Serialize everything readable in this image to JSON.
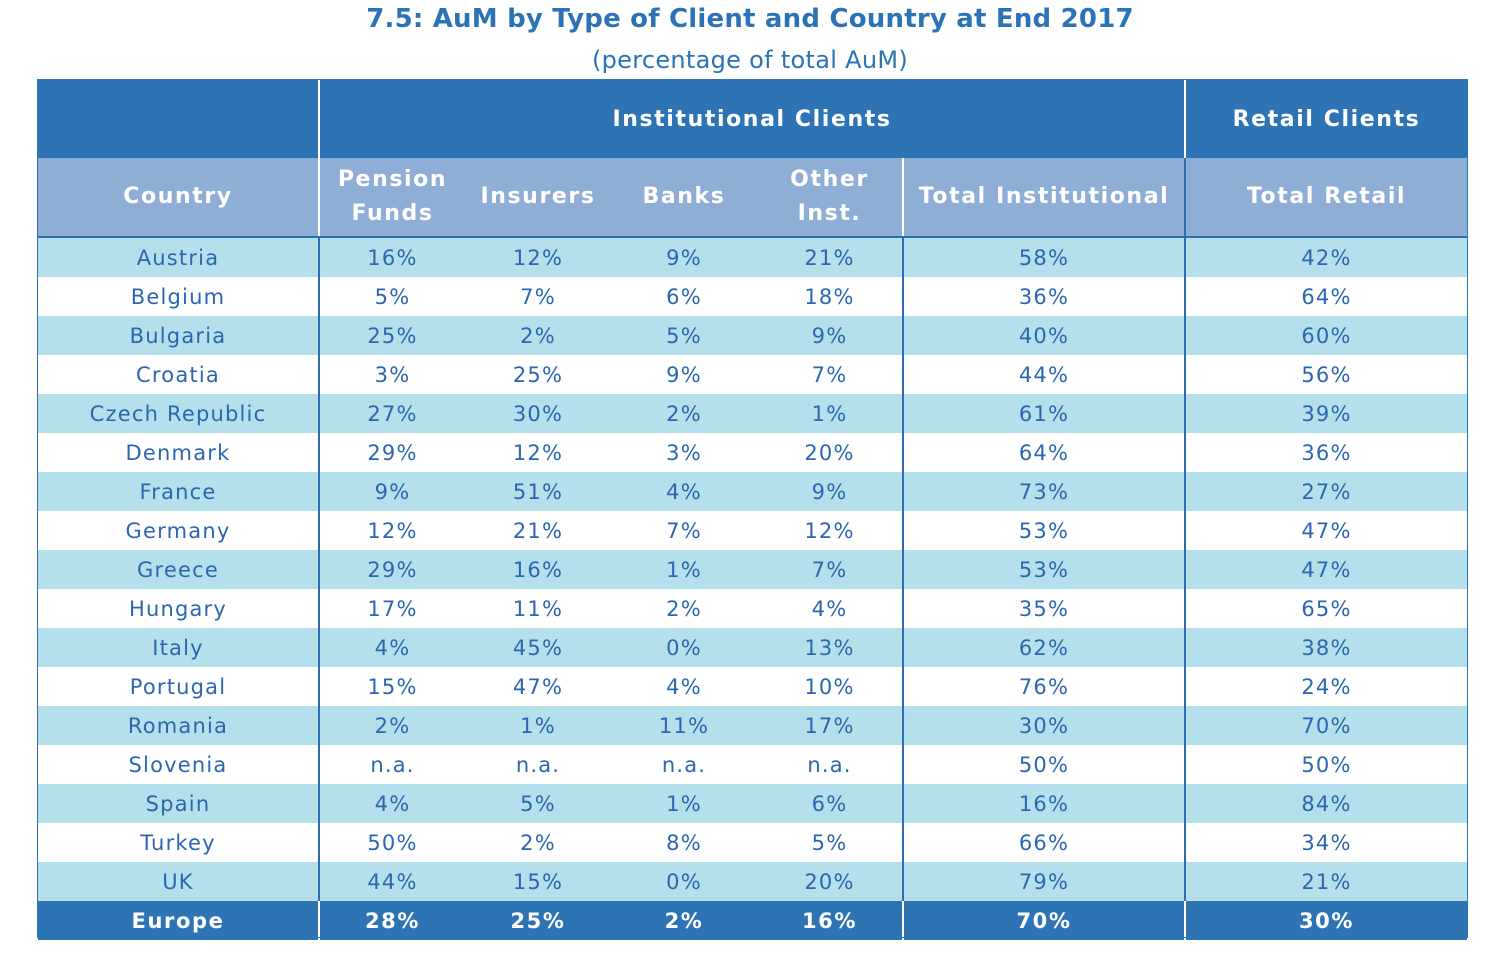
{
  "chart_data": {
    "type": "table",
    "title": "7.5: AuM by Type of Client and Country at End 2017",
    "subtitle": "(percentage of total AuM)",
    "group_headers": {
      "institutional": "Institutional Clients",
      "retail": "Retail Clients"
    },
    "columns": {
      "country": "Country",
      "pension_line1": "Pension",
      "pension_line2": "Funds",
      "insurers": "Insurers",
      "banks": "Banks",
      "other_line1": "Other",
      "other_line2": "Inst.",
      "total_institutional": "Total Institutional",
      "total_retail": "Total Retail"
    },
    "rows": [
      {
        "country": "Austria",
        "pension": "16%",
        "insurers": "12%",
        "banks": "9%",
        "other": "21%",
        "total_inst": "58%",
        "total_retail": "42%"
      },
      {
        "country": "Belgium",
        "pension": "5%",
        "insurers": "7%",
        "banks": "6%",
        "other": "18%",
        "total_inst": "36%",
        "total_retail": "64%"
      },
      {
        "country": "Bulgaria",
        "pension": "25%",
        "insurers": "2%",
        "banks": "5%",
        "other": "9%",
        "total_inst": "40%",
        "total_retail": "60%"
      },
      {
        "country": "Croatia",
        "pension": "3%",
        "insurers": "25%",
        "banks": "9%",
        "other": "7%",
        "total_inst": "44%",
        "total_retail": "56%"
      },
      {
        "country": "Czech Republic",
        "pension": "27%",
        "insurers": "30%",
        "banks": "2%",
        "other": "1%",
        "total_inst": "61%",
        "total_retail": "39%"
      },
      {
        "country": "Denmark",
        "pension": "29%",
        "insurers": "12%",
        "banks": "3%",
        "other": "20%",
        "total_inst": "64%",
        "total_retail": "36%"
      },
      {
        "country": "France",
        "pension": "9%",
        "insurers": "51%",
        "banks": "4%",
        "other": "9%",
        "total_inst": "73%",
        "total_retail": "27%"
      },
      {
        "country": "Germany",
        "pension": "12%",
        "insurers": "21%",
        "banks": "7%",
        "other": "12%",
        "total_inst": "53%",
        "total_retail": "47%"
      },
      {
        "country": "Greece",
        "pension": "29%",
        "insurers": "16%",
        "banks": "1%",
        "other": "7%",
        "total_inst": "53%",
        "total_retail": "47%"
      },
      {
        "country": "Hungary",
        "pension": "17%",
        "insurers": "11%",
        "banks": "2%",
        "other": "4%",
        "total_inst": "35%",
        "total_retail": "65%"
      },
      {
        "country": "Italy",
        "pension": "4%",
        "insurers": "45%",
        "banks": "0%",
        "other": "13%",
        "total_inst": "62%",
        "total_retail": "38%"
      },
      {
        "country": "Portugal",
        "pension": "15%",
        "insurers": "47%",
        "banks": "4%",
        "other": "10%",
        "total_inst": "76%",
        "total_retail": "24%"
      },
      {
        "country": "Romania",
        "pension": "2%",
        "insurers": "1%",
        "banks": "11%",
        "other": "17%",
        "total_inst": "30%",
        "total_retail": "70%"
      },
      {
        "country": "Slovenia",
        "pension": "n.a.",
        "insurers": "n.a.",
        "banks": "n.a.",
        "other": "n.a.",
        "total_inst": "50%",
        "total_retail": "50%"
      },
      {
        "country": "Spain",
        "pension": "4%",
        "insurers": "5%",
        "banks": "1%",
        "other": "6%",
        "total_inst": "16%",
        "total_retail": "84%"
      },
      {
        "country": "Turkey",
        "pension": "50%",
        "insurers": "2%",
        "banks": "8%",
        "other": "5%",
        "total_inst": "66%",
        "total_retail": "34%"
      },
      {
        "country": "UK",
        "pension": "44%",
        "insurers": "15%",
        "banks": "0%",
        "other": "20%",
        "total_inst": "79%",
        "total_retail": "21%"
      }
    ],
    "total_row": {
      "country": "Europe",
      "pension": "28%",
      "insurers": "25%",
      "banks": "2%",
      "other": "16%",
      "total_inst": "70%",
      "total_retail": "30%"
    }
  },
  "colors": {
    "header_blue": "#2e74b5",
    "subheader_blue": "#8eaed6",
    "row_band": "#b3e0ea",
    "text_blue": "#2c66b0"
  }
}
